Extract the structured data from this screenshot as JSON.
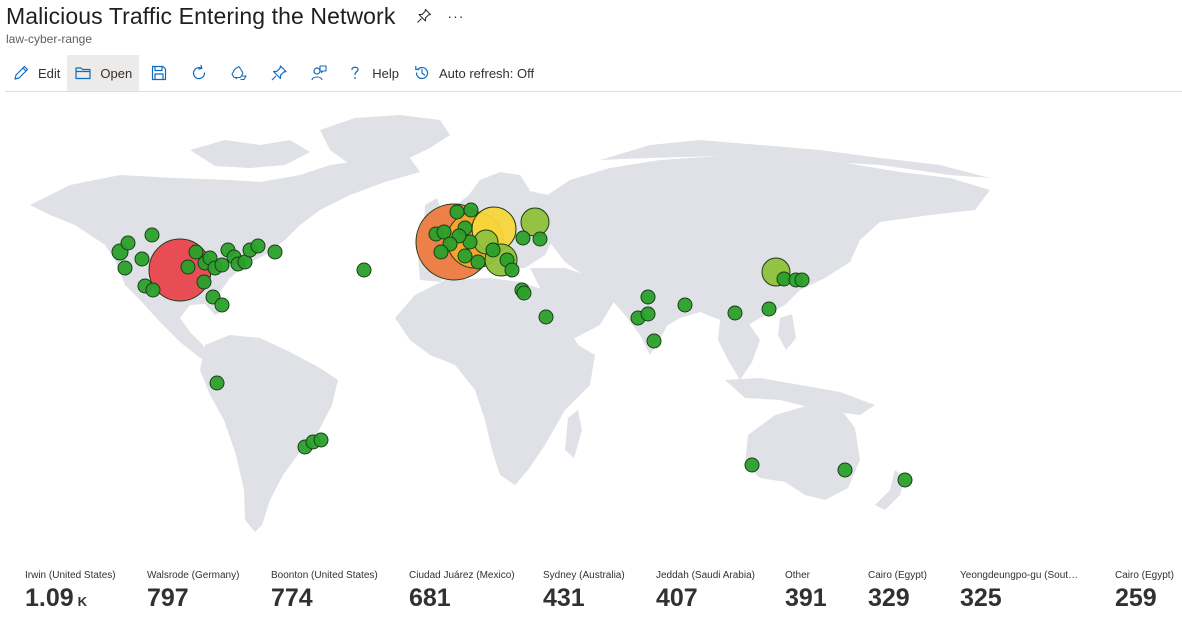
{
  "header": {
    "title": "Malicious Traffic Entering the Network",
    "subtitle": "law-cyber-range",
    "more_label": "···"
  },
  "toolbar": {
    "edit_label": "Edit",
    "open_label": "Open",
    "help_label": "Help",
    "auto_refresh_label": "Auto refresh: Off"
  },
  "colors": {
    "land": "#dfe1e6",
    "bubble_red": "#e8434d",
    "bubble_orange": "#ec7a3f",
    "bubble_amber": "#f6a827",
    "bubble_yellow": "#f7d63a",
    "bubble_lime": "#8fc13a",
    "bubble_green": "#2aa02a",
    "bubble_stroke": "#1b3d1b"
  },
  "tiles": [
    {
      "label": "Irwin (United States)",
      "value": "1.09",
      "unit": "K"
    },
    {
      "label": "Walsrode (Germany)",
      "value": "797",
      "unit": ""
    },
    {
      "label": "Boonton (United States)",
      "value": "774",
      "unit": ""
    },
    {
      "label": "Ciudad Juárez (Mexico)",
      "value": "681",
      "unit": ""
    },
    {
      "label": "Sydney (Australia)",
      "value": "431",
      "unit": ""
    },
    {
      "label": "Jeddah (Saudi Arabia)",
      "value": "407",
      "unit": ""
    },
    {
      "label": "Other",
      "value": "391",
      "unit": ""
    },
    {
      "label": "Cairo (Egypt)",
      "value": "329",
      "unit": ""
    },
    {
      "label": "Yeongdeungpo-gu (South...",
      "value": "325",
      "unit": ""
    },
    {
      "label": "Cairo (Egypt)",
      "value": "259",
      "unit": ""
    }
  ]
}
